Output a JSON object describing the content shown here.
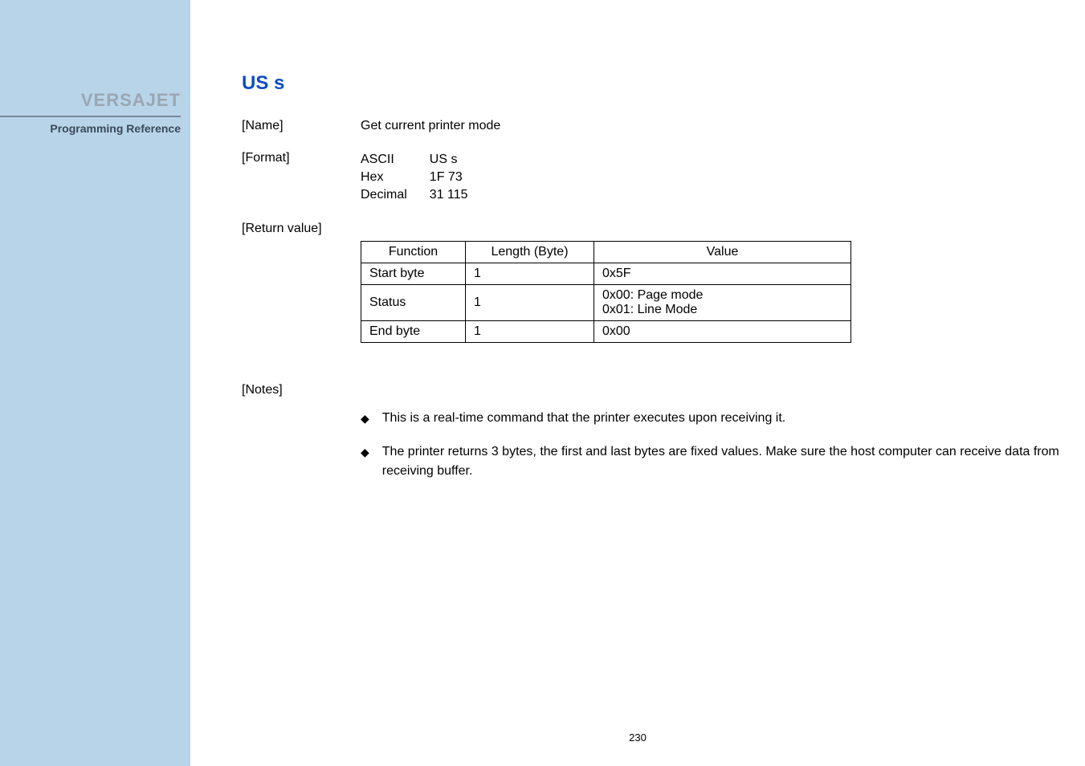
{
  "sidebar": {
    "product_name": "VERSAJET",
    "subtitle": "Programming Reference",
    "title_color": "#9aa6b2",
    "subtitle_color": "#3a4a5a",
    "bg_color": "#b8d4e8"
  },
  "command": {
    "title": "US s",
    "title_color": "#0b4ec4"
  },
  "name": {
    "label": "[Name]",
    "value": "Get current printer mode"
  },
  "format": {
    "label": "[Format]",
    "rows": [
      {
        "enc": "ASCII",
        "val": "US s"
      },
      {
        "enc": "Hex",
        "val": "1F 73"
      },
      {
        "enc": "Decimal",
        "val": "31 115"
      }
    ]
  },
  "return_value": {
    "label": "[Return value]",
    "columns": [
      "Function",
      "Length (Byte)",
      "Value"
    ],
    "rows": [
      {
        "func": "Start byte",
        "len": "1",
        "val": "0x5F"
      },
      {
        "func": "Status",
        "len": "1",
        "val": "0x00: Page mode\n0x01: Line Mode"
      },
      {
        "func": "End byte",
        "len": "1",
        "val": "0x00"
      }
    ]
  },
  "notes": {
    "label": "[Notes]",
    "bullets": [
      "This is a real-time command that the printer executes upon receiving it.",
      "The printer returns 3 bytes, the first and last bytes are fixed values. Make sure the host computer can receive data from receiving buffer."
    ]
  },
  "page_number": "230"
}
